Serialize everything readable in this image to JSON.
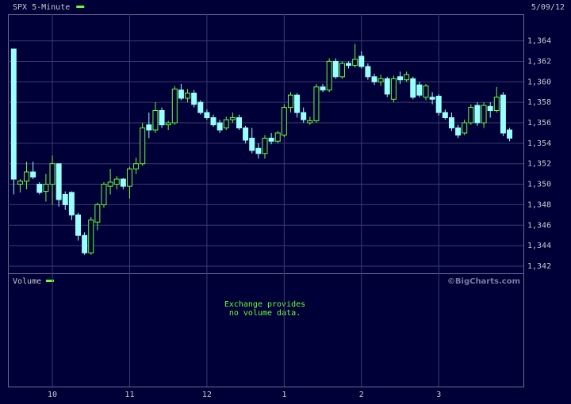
{
  "chart_data": {
    "type": "candlestick",
    "title": "SPX 5-Minute",
    "date": "5/09/12",
    "volume_label": "Volume",
    "volume_note": [
      "Exchange provides",
      "no volume data."
    ],
    "credit": "©BigCharts.com",
    "up_color": "#66ff33",
    "down_color": "#99ffff",
    "legend_color": "#66ff33",
    "grid": true,
    "x": [
      "9:30",
      "9:35",
      "9:40",
      "9:45",
      "9:50",
      "9:55",
      "10:00",
      "10:05",
      "10:10",
      "10:15",
      "10:20",
      "10:25",
      "10:30",
      "10:35",
      "10:40",
      "10:45",
      "10:50",
      "10:55",
      "11:00",
      "11:05",
      "11:10",
      "11:15",
      "11:20",
      "11:25",
      "11:30",
      "11:35",
      "11:40",
      "11:45",
      "11:50",
      "11:55",
      "12:00",
      "12:05",
      "12:10",
      "12:15",
      "12:20",
      "12:25",
      "12:30",
      "12:35",
      "12:40",
      "12:45",
      "12:50",
      "12:55",
      "13:00",
      "13:05",
      "13:10",
      "13:15",
      "13:20",
      "13:25",
      "13:30",
      "13:35",
      "13:40",
      "13:45",
      "13:50",
      "13:55",
      "14:00",
      "14:05",
      "14:10",
      "14:15",
      "14:20",
      "14:25",
      "14:30",
      "14:35",
      "14:40",
      "14:45",
      "14:50",
      "14:55",
      "15:00",
      "15:05",
      "15:10",
      "15:15",
      "15:20",
      "15:25",
      "15:30",
      "15:35",
      "15:40",
      "15:45",
      "15:50",
      "15:55"
    ],
    "open": [
      1363.2,
      1350,
      1350.3,
      1351.2,
      1350,
      1349.3,
      1350,
      1352,
      1349,
      1349.2,
      1347,
      1345,
      1343.3,
      1346.3,
      1348,
      1349.8,
      1350,
      1350.5,
      1349.8,
      1351.5,
      1352,
      1355.8,
      1355.3,
      1357.2,
      1355.8,
      1356,
      1359.2,
      1358.4,
      1358.9,
      1358,
      1357,
      1356.5,
      1356,
      1355.5,
      1356.3,
      1356.5,
      1355.5,
      1354.5,
      1353.5,
      1353,
      1354.5,
      1354.2,
      1354.8,
      1357.5,
      1358.7,
      1357,
      1356,
      1356.2,
      1359.5,
      1359.2,
      1362,
      1360.5,
      1361.8,
      1361.6,
      1362.5,
      1361.5,
      1360.5,
      1360,
      1360.3,
      1358.3,
      1360.5,
      1360.2,
      1360.3,
      1359.7,
      1358.5,
      1358.5,
      1358.6,
      1357,
      1356.5,
      1355.5,
      1355,
      1356,
      1357.7,
      1356,
      1357.6,
      1357.2,
      1358.7,
      1355.3
    ],
    "high": [
      1363.2,
      1350.5,
      1352.2,
      1352.2,
      1350.2,
      1351,
      1352.8,
      1352,
      1349.3,
      1349.3,
      1347.2,
      1345.3,
      1346.8,
      1348.2,
      1350.2,
      1351.5,
      1350.8,
      1350.6,
      1351.7,
      1352.6,
      1356,
      1357,
      1358,
      1357.5,
      1356.2,
      1359.6,
      1359.8,
      1359.3,
      1359.2,
      1358.2,
      1357.3,
      1356.8,
      1356.3,
      1356.6,
      1357,
      1356.8,
      1355.7,
      1355.5,
      1354,
      1354.8,
      1355,
      1355.2,
      1357.8,
      1359,
      1358.9,
      1357.5,
      1356.6,
      1359.8,
      1359.8,
      1362.3,
      1362.3,
      1362,
      1362,
      1363.7,
      1363,
      1361.8,
      1360.8,
      1360.7,
      1360.5,
      1360.6,
      1361,
      1361,
      1360.5,
      1360,
      1359.8,
      1359,
      1358.8,
      1357.3,
      1357,
      1355.8,
      1356.3,
      1357.8,
      1358,
      1358,
      1358,
      1359.5,
      1359,
      1355.5
    ],
    "low": [
      1349,
      1349.2,
      1349.5,
      1350.5,
      1349,
      1348.3,
      1348,
      1347.8,
      1347.5,
      1346.5,
      1344.5,
      1343.1,
      1343.1,
      1345.5,
      1347.7,
      1349,
      1349.5,
      1349.5,
      1348.6,
      1351,
      1351.8,
      1354.5,
      1355,
      1355.5,
      1355.3,
      1355.8,
      1358.2,
      1358,
      1357.5,
      1356.8,
      1356.3,
      1355.6,
      1355,
      1355.3,
      1356,
      1355.3,
      1354,
      1353,
      1352.5,
      1352.5,
      1353.9,
      1354,
      1354.6,
      1357,
      1356.5,
      1356,
      1355.8,
      1356,
      1359,
      1359,
      1360.3,
      1360.3,
      1361.3,
      1361.4,
      1361.3,
      1360.2,
      1359.7,
      1359.6,
      1358.5,
      1358,
      1359.8,
      1360,
      1358.3,
      1358.5,
      1358.2,
      1357.8,
      1356.7,
      1356.3,
      1355.2,
      1354.5,
      1354.8,
      1355.8,
      1355.7,
      1355.5,
      1356.5,
      1357,
      1354.7,
      1354.2
    ],
    "close": [
      1350.5,
      1350.3,
      1351.2,
      1350.7,
      1349.2,
      1350,
      1352,
      1348.5,
      1348,
      1347,
      1345,
      1343.3,
      1346.5,
      1348,
      1350,
      1350.2,
      1350.5,
      1349.8,
      1351.5,
      1352,
      1355.5,
      1355.3,
      1357.2,
      1355.8,
      1356,
      1359.3,
      1358.4,
      1358.9,
      1357.8,
      1357,
      1356.5,
      1355.8,
      1355.3,
      1356.3,
      1356.5,
      1355.5,
      1354.3,
      1353.3,
      1353,
      1354.5,
      1354.2,
      1355,
      1357.5,
      1358.7,
      1357,
      1356.3,
      1356.2,
      1359.5,
      1359.2,
      1362,
      1360.5,
      1361.8,
      1361.6,
      1362.2,
      1361.5,
      1360.5,
      1360,
      1360.3,
      1358.8,
      1360.3,
      1360.2,
      1360.7,
      1358.5,
      1358.7,
      1359.6,
      1358.3,
      1357,
      1356.5,
      1355.5,
      1354.8,
      1356,
      1357.5,
      1356,
      1357.7,
      1357.2,
      1358.5,
      1355,
      1354.5
    ],
    "ylim": [
      1341.3,
      1366.6
    ],
    "yticks": [
      {
        "value": 1342,
        "label": "1,342"
      },
      {
        "value": 1344,
        "label": "1,344"
      },
      {
        "value": 1346,
        "label": "1,346"
      },
      {
        "value": 1348,
        "label": "1,348"
      },
      {
        "value": 1350,
        "label": "1,350"
      },
      {
        "value": 1352,
        "label": "1,352"
      },
      {
        "value": 1354,
        "label": "1,354"
      },
      {
        "value": 1356,
        "label": "1,356"
      },
      {
        "value": 1358,
        "label": "1,358"
      },
      {
        "value": 1360,
        "label": "1,360"
      },
      {
        "value": 1362,
        "label": "1,362"
      },
      {
        "value": 1364,
        "label": "1,364"
      }
    ],
    "xticks": [
      {
        "value": "10:00",
        "label": "10"
      },
      {
        "value": "11:00",
        "label": "11"
      },
      {
        "value": "12:00",
        "label": "12"
      },
      {
        "value": "13:00",
        "label": "1"
      },
      {
        "value": "14:00",
        "label": "2"
      },
      {
        "value": "15:00",
        "label": "3"
      }
    ]
  }
}
